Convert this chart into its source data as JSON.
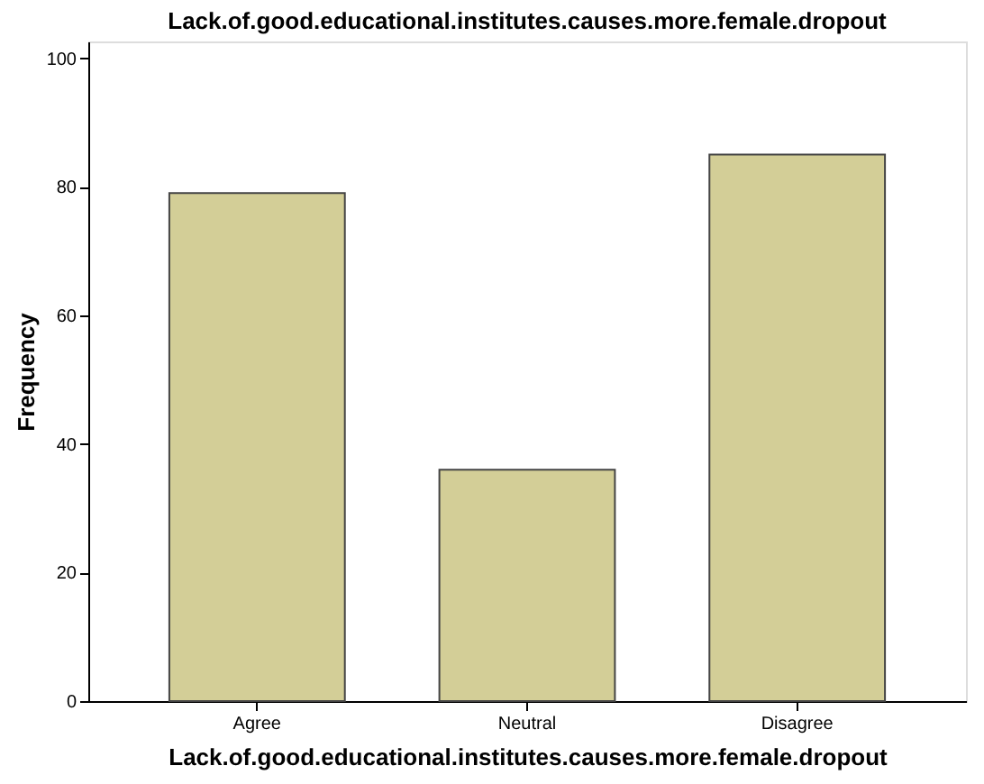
{
  "chart_data": {
    "type": "bar",
    "title": "Lack.of.good.educational.institutes.causes.more.female.dropout",
    "xlabel": "Lack.of.good.educational.institutes.causes.more.female.dropout",
    "ylabel": "Frequency",
    "categories": [
      "Agree",
      "Neutral",
      "Disagree"
    ],
    "values": [
      79,
      36,
      85
    ],
    "color": "#d3ce97",
    "ylim": [
      0,
      102.6
    ],
    "yticks": [
      0,
      20,
      40,
      60,
      80,
      100
    ],
    "grid": false
  }
}
